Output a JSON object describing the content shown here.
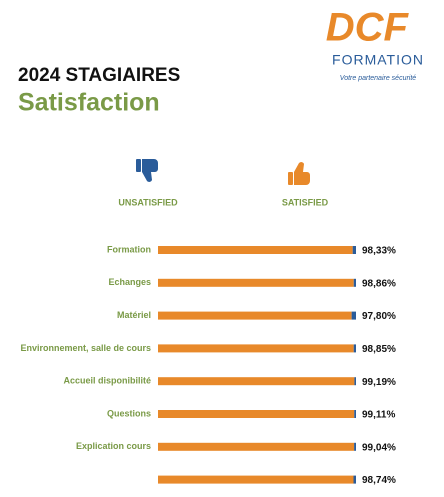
{
  "logo": {
    "name": "DCF",
    "subtitle": "FORMATION",
    "tagline": "Votre partenaire sécurité"
  },
  "chart_data": {
    "type": "stacked-bar-horizontal",
    "title": "2024 STAGIAIRES",
    "subtitle": "Satisfaction",
    "categories": [
      "Formation",
      "Echanges",
      "Matériel",
      "Environnement, salle de cours",
      "Accueil disponibilité",
      "Questions",
      "Explication cours",
      null
    ],
    "xlim": [
      0,
      100
    ],
    "series": [
      {
        "name": "SATISFIED",
        "color": "#e8892a",
        "values": [
          98.33,
          98.86,
          97.8,
          98.85,
          99.19,
          99.11,
          99.04,
          98.74
        ],
        "value_labels": [
          "98,33%",
          "98,86%",
          "97,80%",
          "98,85%",
          "99,19%",
          "99,11%",
          "99,04%",
          "98,74%"
        ]
      },
      {
        "name": "UNSATISFIED",
        "color": "#2a5c9a",
        "values": [
          1.67,
          1.14,
          2.2,
          1.15,
          0.81,
          0.89,
          0.96,
          1.26
        ]
      }
    ]
  }
}
